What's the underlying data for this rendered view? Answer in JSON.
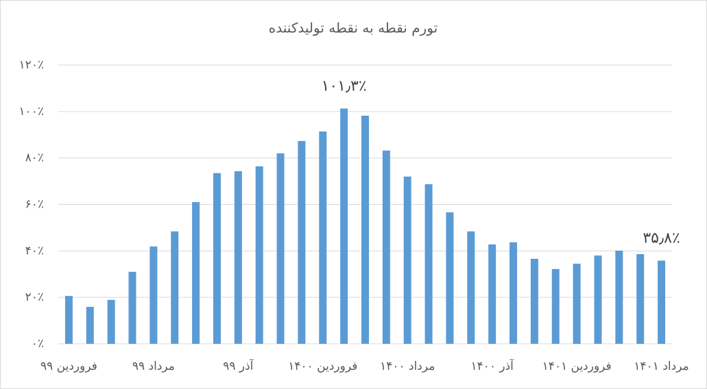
{
  "chart_data": {
    "type": "bar",
    "title": "تورم نقطه به نقطه تولیدکننده",
    "categories": [
      "فروردین ۹۹",
      null,
      null,
      null,
      "مرداد ۹۹",
      null,
      null,
      null,
      "آذر ۹۹",
      null,
      null,
      null,
      "فروردین ۱۴۰۰",
      null,
      null,
      null,
      "مرداد ۱۴۰۰",
      null,
      null,
      null,
      "آذر ۱۴۰۰",
      null,
      null,
      null,
      "فروردین ۱۴۰۱",
      null,
      null,
      null,
      "مرداد ۱۴۰۱"
    ],
    "values": [
      20.6,
      15.9,
      18.9,
      31,
      41.9,
      48.4,
      61,
      73.5,
      74.3,
      76.4,
      82,
      87.3,
      91.4,
      101.3,
      98.2,
      83.2,
      72,
      68.7,
      56.6,
      48.4,
      42.8,
      43.7,
      36.6,
      32.2,
      34.5,
      38,
      40.1,
      38.6,
      35.8
    ],
    "value_labels": [
      null,
      null,
      null,
      null,
      null,
      null,
      null,
      null,
      null,
      null,
      null,
      null,
      null,
      "۱۰۱٫۳٪",
      null,
      null,
      null,
      null,
      null,
      null,
      null,
      null,
      null,
      null,
      null,
      null,
      null,
      null,
      "۳۵٫۸٪"
    ],
    "color": "#5b9bd5",
    "ylim": [
      0,
      120
    ],
    "yticks": [
      {
        "value": 0,
        "label": "۰٪"
      },
      {
        "value": 20,
        "label": "۲۰٪"
      },
      {
        "value": 40,
        "label": "۴۰٪"
      },
      {
        "value": 60,
        "label": "۶۰٪"
      },
      {
        "value": 80,
        "label": "۸۰٪"
      },
      {
        "value": 100,
        "label": "۱۰۰٪"
      },
      {
        "value": 120,
        "label": "۱۲۰٪"
      }
    ],
    "grid": true
  }
}
